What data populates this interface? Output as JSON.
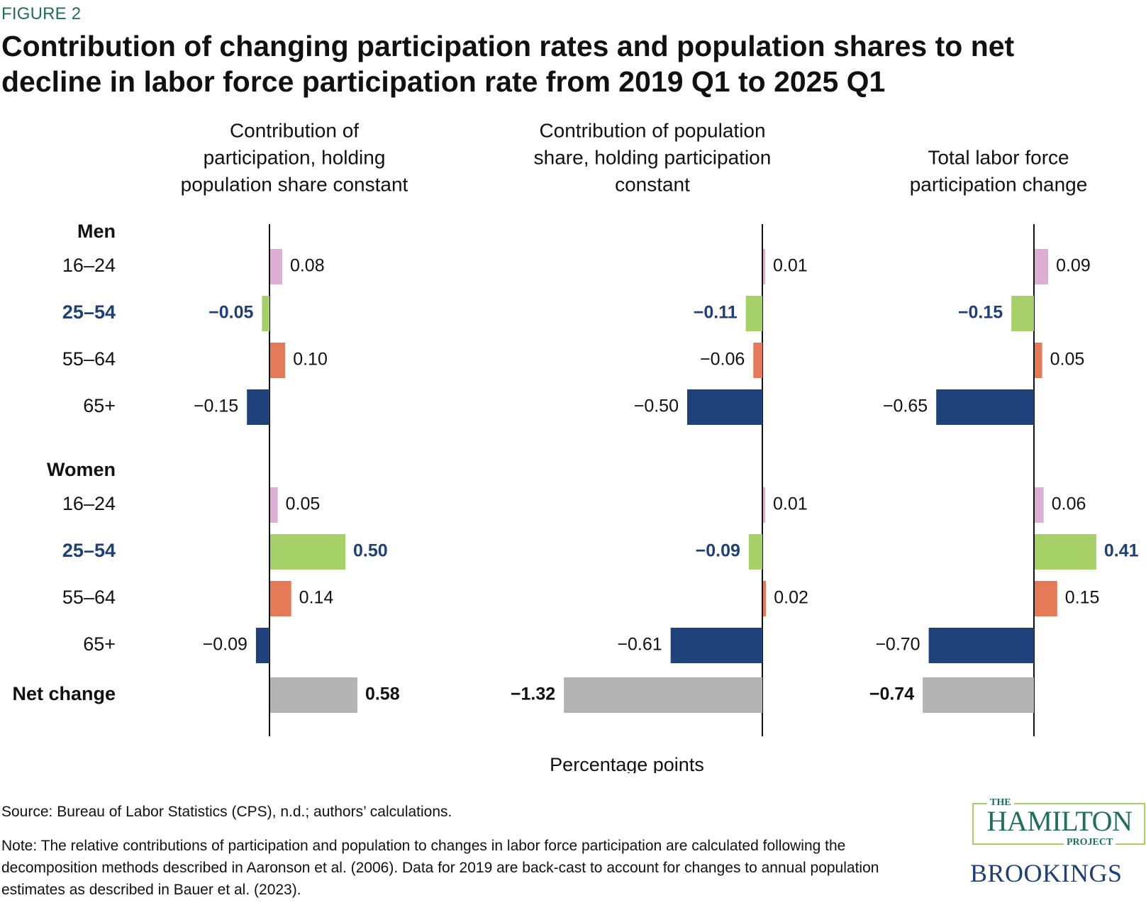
{
  "figure_label": "FIGURE 2",
  "title": "Contribution of changing participation rates and population shares to net decline in labor force participation rate from 2019 Q1 to 2025 Q1",
  "source": "Source: Bureau of Labor Statistics (CPS), n.d.; authors’ calculations.",
  "note": "Note: The relative contributions of participation and population to changes in labor force participation are calculated following the decomposition methods described in Aaronson et al. (2006). Data for 2019 are back-cast to account for changes to annual population estimates as described in Bauer et al. (2023).",
  "logos": {
    "hamilton_the": "THE",
    "hamilton_name": "HAMILTON",
    "hamilton_project": "PROJECT",
    "brookings": "BROOKINGS"
  },
  "colors": {
    "age_16_24": "#dcaed4",
    "age_25_54": "#a6d068",
    "age_55_64": "#e57a58",
    "age_65_plus": "#1f427a",
    "net": "#b3b3b3",
    "highlight_text": "#1f3f77",
    "axis": "#111111"
  },
  "chart_data": {
    "type": "bar",
    "orientation": "horizontal",
    "title": "Contribution of changing participation rates and population shares to net decline in labor force participation rate from 2019 Q1 to 2025 Q1",
    "xlabel": "Percentage points",
    "groups": [
      {
        "label": "Men",
        "rows": [
          "16–24",
          "25–54",
          "55–64",
          "65+"
        ]
      },
      {
        "label": "Women",
        "rows": [
          "16–24",
          "25–54",
          "55–64",
          "65+"
        ]
      }
    ],
    "net_label": "Net change",
    "row_colors": [
      "age_16_24",
      "age_25_54",
      "age_55_64",
      "age_65_plus"
    ],
    "highlight_row": "25–54",
    "panels": [
      {
        "title": [
          "Contribution of",
          "participation, holding",
          "population share constant"
        ],
        "men": [
          0.08,
          -0.05,
          0.1,
          -0.15
        ],
        "women": [
          0.05,
          0.5,
          0.14,
          -0.09
        ],
        "net": 0.58
      },
      {
        "title": [
          "Contribution of population",
          "share, holding participation",
          "constant"
        ],
        "men": [
          0.01,
          -0.11,
          -0.06,
          -0.5
        ],
        "women": [
          0.01,
          -0.09,
          0.02,
          -0.61
        ],
        "net": -1.32
      },
      {
        "title": [
          "Total labor force",
          "participation change"
        ],
        "men": [
          0.09,
          -0.15,
          0.05,
          -0.65
        ],
        "women": [
          0.06,
          0.41,
          0.15,
          -0.7
        ],
        "net": -0.74
      }
    ]
  }
}
